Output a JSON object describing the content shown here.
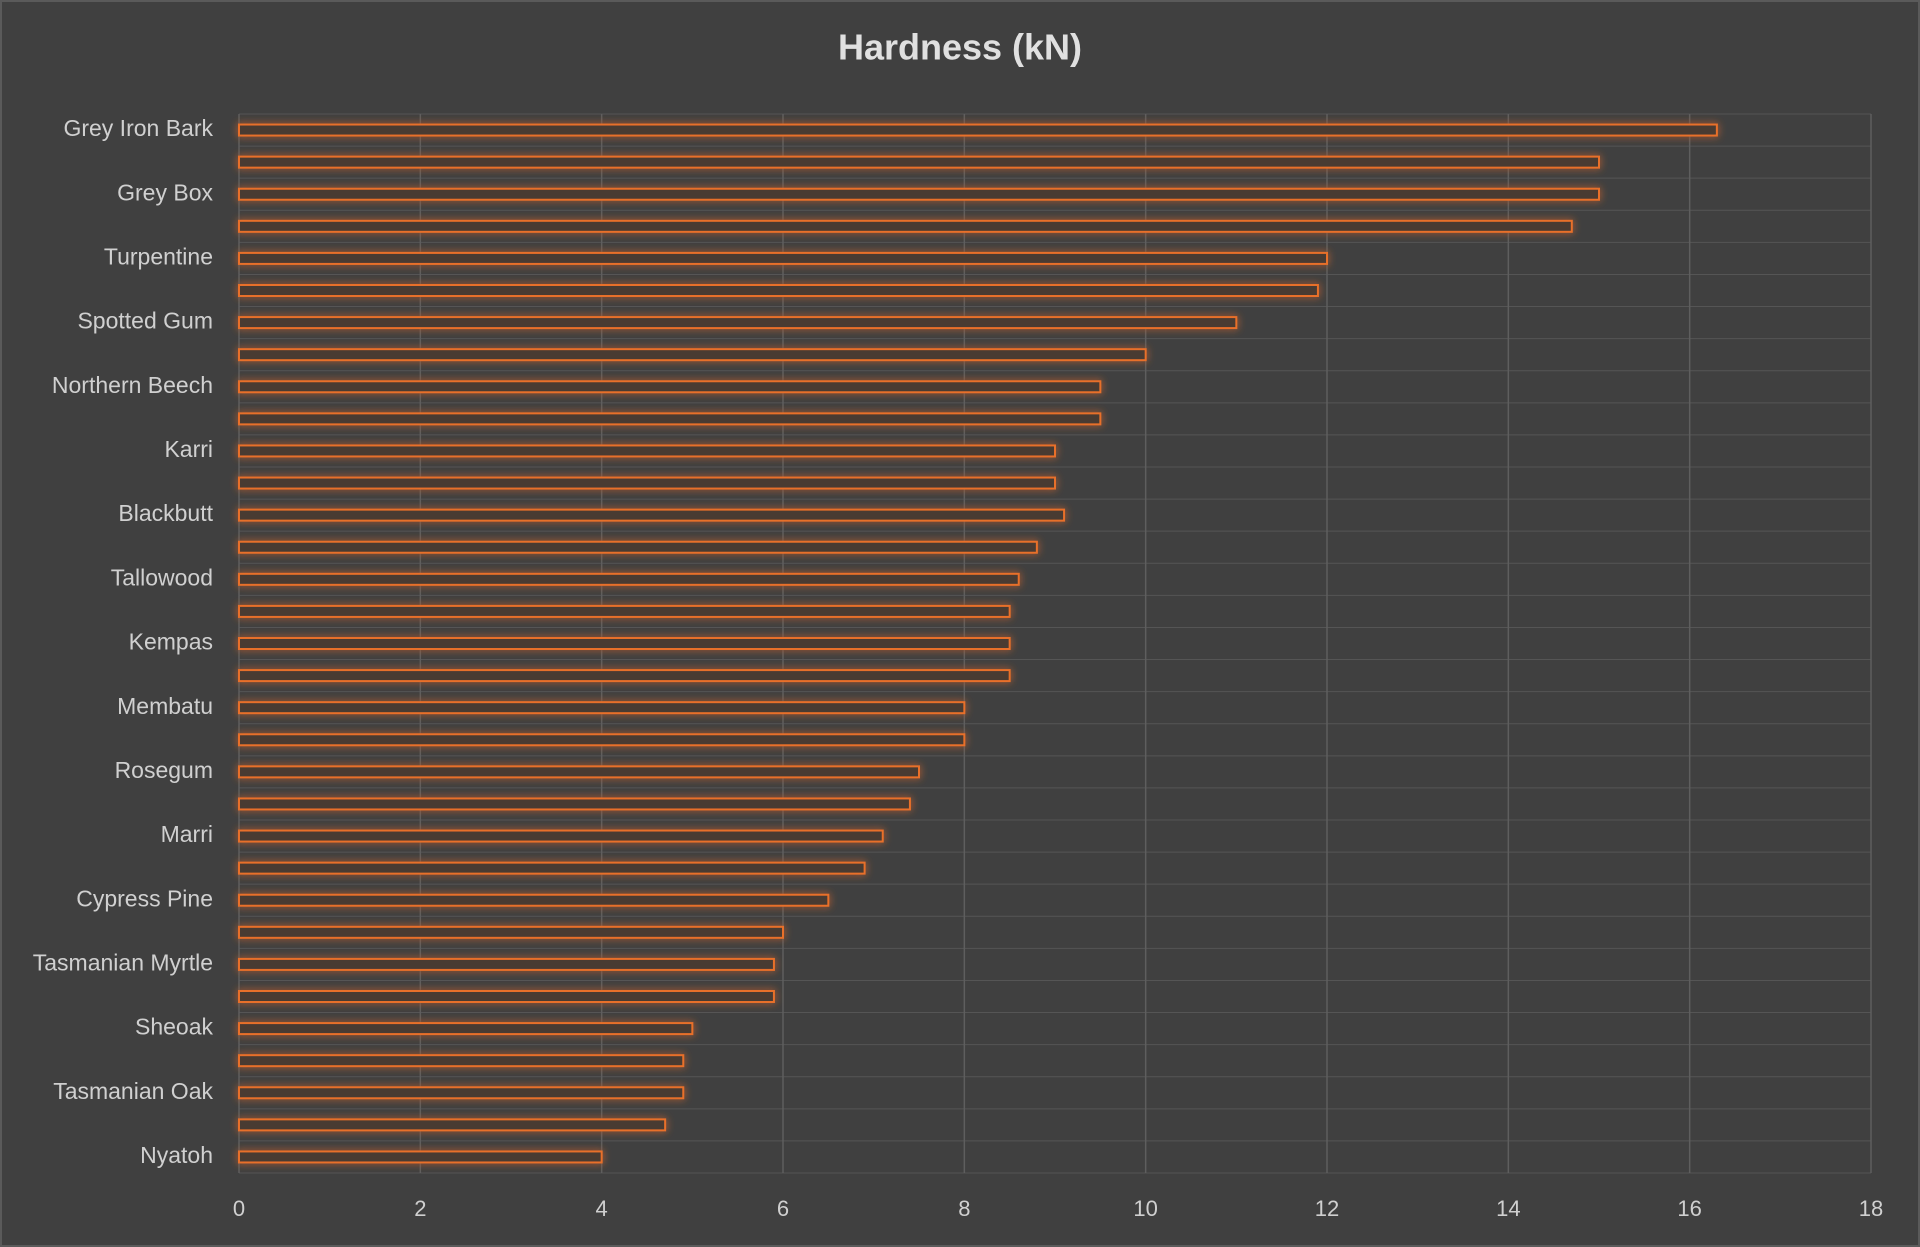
{
  "chart_data": {
    "type": "bar",
    "orientation": "horizontal",
    "title": "Hardness (kN)",
    "categories": [
      "Grey Iron Bark",
      null,
      "Grey Box",
      null,
      "Turpentine",
      null,
      "Spotted Gum",
      null,
      "Northern Beech",
      null,
      "Karri",
      null,
      "Blackbutt",
      null,
      "Tallowood",
      null,
      "Kempas",
      null,
      "Membatu",
      null,
      "Rosegum",
      null,
      "Marri",
      null,
      "Cypress Pine",
      null,
      "Tasmanian Myrtle",
      null,
      "Sheoak",
      null,
      "Tasmanian Oak",
      null,
      "Nyatoh"
    ],
    "values": [
      16.3,
      15.0,
      15.0,
      14.7,
      12.0,
      11.9,
      11.0,
      10.0,
      9.5,
      9.5,
      9.0,
      9.0,
      9.1,
      8.8,
      8.6,
      8.5,
      8.5,
      8.5,
      8.0,
      8.0,
      7.5,
      7.4,
      7.1,
      6.9,
      6.5,
      6.0,
      5.9,
      5.9,
      5.0,
      4.9,
      4.9,
      4.7,
      4.0
    ],
    "color": "#e8702a",
    "xlim": [
      0,
      18
    ],
    "xticks": [
      0,
      2,
      4,
      6,
      8,
      10,
      12,
      14,
      16,
      18
    ],
    "grid": true
  }
}
